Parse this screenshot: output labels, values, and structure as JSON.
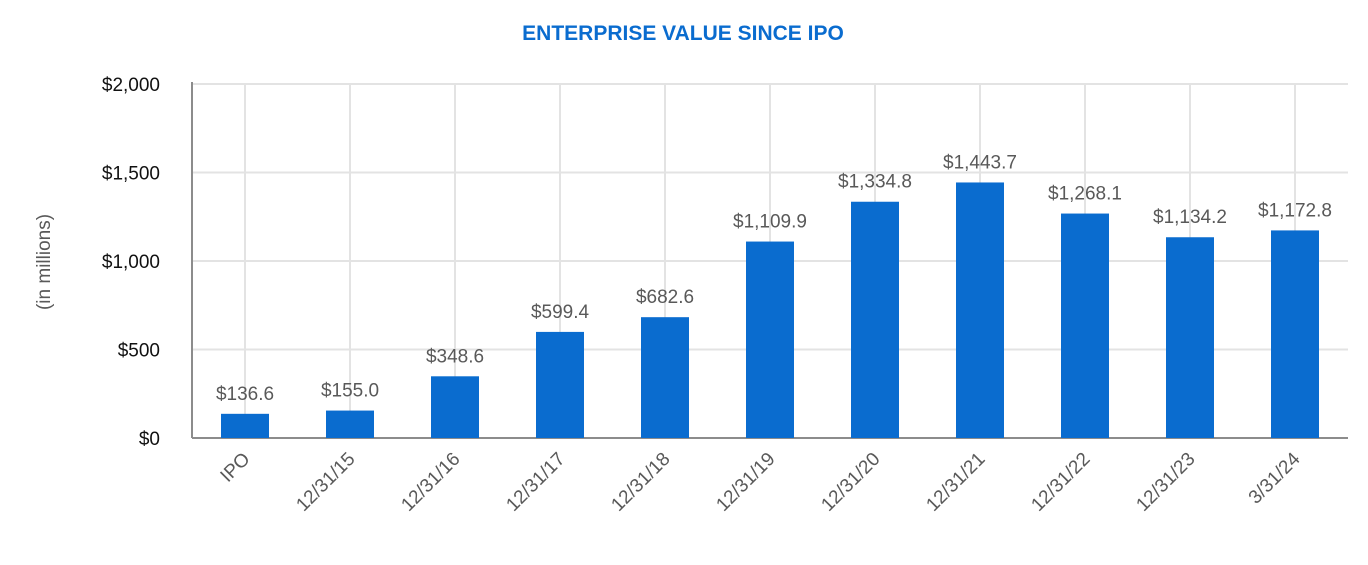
{
  "chart_data": {
    "type": "bar",
    "title": "ENTERPRISE VALUE SINCE IPO",
    "xlabel": "",
    "ylabel": "(in millions)",
    "categories": [
      "IPO",
      "12/31/15",
      "12/31/16",
      "12/31/17",
      "12/31/18",
      "12/31/19",
      "12/31/20",
      "12/31/21",
      "12/31/22",
      "12/31/23",
      "3/31/24"
    ],
    "values": [
      136.6,
      155.0,
      348.6,
      599.4,
      682.6,
      1109.9,
      1334.8,
      1443.7,
      1268.1,
      1134.2,
      1172.8
    ],
    "data_labels": [
      "$136.6",
      "$155.0",
      "$348.6",
      "$599.4",
      "$682.6",
      "$1,109.9",
      "$1,334.8",
      "$1,443.7",
      "$1,268.1",
      "$1,134.2",
      "$1,172.8"
    ],
    "ylim": [
      0,
      2000
    ],
    "yticks": [
      0,
      500,
      1000,
      1500,
      2000
    ],
    "ytick_labels": [
      "$0",
      "$500",
      "$1,000",
      "$1,500",
      "$2,000"
    ],
    "grid": true,
    "colors": {
      "bar": "#0a6ccf",
      "title": "#0a6ccf",
      "grid": "#e3e3e3",
      "axis": "#8c8c8c",
      "label": "#595959"
    }
  }
}
